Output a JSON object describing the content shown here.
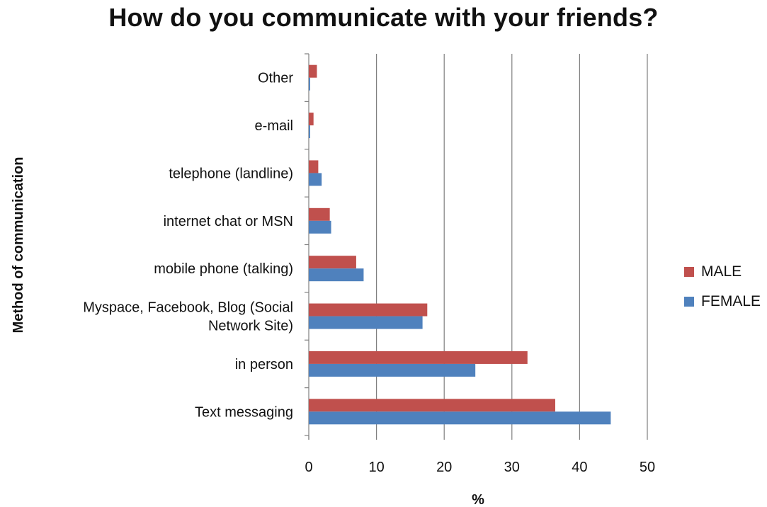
{
  "chart_data": {
    "type": "bar",
    "orientation": "horizontal",
    "title": "How do you communicate with your friends?",
    "xlabel": "%",
    "ylabel": "Method of communication",
    "xlim": [
      0,
      50
    ],
    "xticks": [
      0,
      10,
      20,
      30,
      40,
      50
    ],
    "grid": true,
    "legend_position": "right",
    "categories": [
      "Other",
      "e-mail",
      "telephone (landline)",
      "internet chat or MSN",
      "mobile phone (talking)",
      "Myspace, Facebook, Blog (Social Network Site)",
      "in person",
      "Text messaging"
    ],
    "category_lines": [
      [
        "Other"
      ],
      [
        "e-mail"
      ],
      [
        "telephone (landline)"
      ],
      [
        "internet chat or MSN"
      ],
      [
        "mobile phone (talking)"
      ],
      [
        "Myspace, Facebook, Blog (Social",
        "Network Site)"
      ],
      [
        "in person"
      ],
      [
        "Text messaging"
      ]
    ],
    "series": [
      {
        "name": "MALE",
        "color": "#c0504d",
        "values": [
          1.2,
          0.7,
          1.4,
          3.1,
          7.0,
          17.5,
          32.3,
          36.4
        ]
      },
      {
        "name": "FEMALE",
        "color": "#4f81bd",
        "values": [
          0.2,
          0.2,
          1.9,
          3.3,
          8.1,
          16.8,
          24.6,
          44.6
        ]
      }
    ]
  }
}
